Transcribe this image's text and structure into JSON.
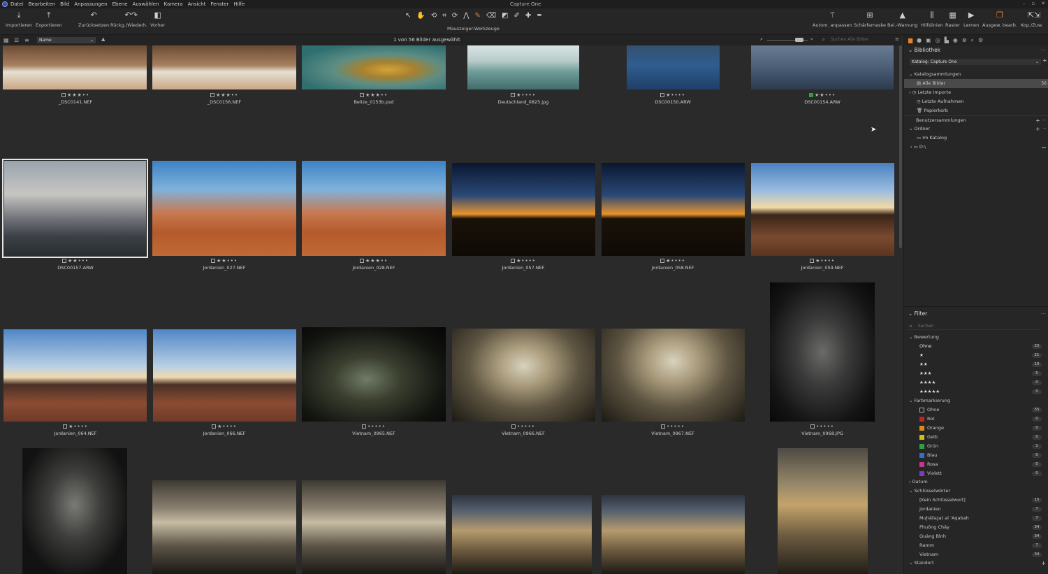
{
  "app": {
    "title": "Capture One"
  },
  "menu": [
    "Datei",
    "Bearbeiten",
    "Bild",
    "Anpassungen",
    "Ebene",
    "Auswählen",
    "Kamera",
    "Ansicht",
    "Fenster",
    "Hilfe"
  ],
  "toolbar": {
    "left": [
      {
        "label": "Importieren",
        "icon": "download-icon"
      },
      {
        "label": "Exportieren",
        "icon": "upload-icon"
      },
      {
        "label": "Zurücksetzen",
        "icon": "reset-icon"
      },
      {
        "label": "Rückg./Wiederh.",
        "icon": "undo-redo-icon"
      },
      {
        "label": "Vorher",
        "icon": "before-after-icon"
      }
    ],
    "cursor_tools_label": "Mauszeiger-Werkzeuge",
    "right": [
      {
        "label": "Autom. anpassen",
        "icon": "magic-wand-icon"
      },
      {
        "label": "Schärfemaske",
        "icon": "focus-mask-icon"
      },
      {
        "label": "Bel.-Warnung",
        "icon": "warning-icon"
      },
      {
        "label": "Hilfslinien",
        "icon": "guides-icon"
      },
      {
        "label": "Raster",
        "icon": "grid-icon"
      },
      {
        "label": "Lernen",
        "icon": "play-icon"
      },
      {
        "label": "Ausgew. bearb.",
        "icon": "edit-selected-icon"
      },
      {
        "label": "Kop./Zuw.",
        "icon": "copy-apply-icon"
      }
    ]
  },
  "browser": {
    "sort_value": "Name",
    "count_text": "1 von 56 Bilder ausgewählt",
    "search_placeholder": "Suchen Alle Bilder"
  },
  "images": [
    {
      "name": "_DSC0141.NEF",
      "rating": 3,
      "tag": "none"
    },
    {
      "name": "_DSC0156.NEF",
      "rating": 3,
      "tag": "none"
    },
    {
      "name": "Belize_0153b.psd",
      "rating": 3,
      "tag": "none"
    },
    {
      "name": "Deutschland_0825.jpg",
      "rating": 1,
      "tag": "none"
    },
    {
      "name": "DSC00150.ARW",
      "rating": 1,
      "tag": "none"
    },
    {
      "name": "DSC00154.ARW",
      "rating": 2,
      "tag": "green"
    },
    {
      "name": "DSC00157.ARW",
      "rating": 2,
      "tag": "none"
    },
    {
      "name": "Jordanien_027.NEF",
      "rating": 2,
      "tag": "none"
    },
    {
      "name": "Jordanien_028.NEF",
      "rating": 3,
      "tag": "none"
    },
    {
      "name": "Jordanien_057.NEF",
      "rating": 1,
      "tag": "none"
    },
    {
      "name": "Jordanien_058.NEF",
      "rating": 1,
      "tag": "none"
    },
    {
      "name": "Jordanien_059.NEF",
      "rating": 1,
      "tag": "none"
    },
    {
      "name": "Jordanien_064.NEF",
      "rating": 1,
      "tag": "none"
    },
    {
      "name": "Jordanien_066.NEF",
      "rating": 1,
      "tag": "none"
    },
    {
      "name": "Vietnam_0965.NEF",
      "rating": 0,
      "tag": "none"
    },
    {
      "name": "Vietnam_0966.NEF",
      "rating": 0,
      "tag": "none"
    },
    {
      "name": "Vietnam_0967.NEF",
      "rating": 0,
      "tag": "none"
    },
    {
      "name": "Vietnam_0968.JPG",
      "rating": 0,
      "tag": "none"
    }
  ],
  "library": {
    "title": "Bibliothek",
    "catalog": "Katalog: Capture One",
    "collections_title": "Katalogsammlungen",
    "collections": [
      {
        "label": "Alle Bilder",
        "count": "56"
      },
      {
        "label": "Letzte Importe",
        "count": ""
      },
      {
        "label": "Letzte Aufnahmen",
        "count": ""
      },
      {
        "label": "Papierkorb",
        "count": ""
      }
    ],
    "user_collections": "Benutzersammlungen",
    "folders_title": "Ordner",
    "folders": [
      "Im Katalog",
      "D:\\"
    ]
  },
  "filter": {
    "title": "Filter",
    "search_placeholder": "Suchen",
    "rating_title": "Bewertung",
    "ratings": [
      {
        "label": "Ohne",
        "count": "20"
      },
      {
        "label": "★",
        "count": "21"
      },
      {
        "label": "★★",
        "count": "10"
      },
      {
        "label": "★★★",
        "count": "5"
      },
      {
        "label": "★★★★",
        "count": "0"
      },
      {
        "label": "★★★★★",
        "count": "0"
      }
    ],
    "color_title": "Farbmarkierung",
    "colors": [
      {
        "label": "Ohne",
        "count": "55",
        "color": "none"
      },
      {
        "label": "Rot",
        "count": "0",
        "color": "#c02424"
      },
      {
        "label": "Orange",
        "count": "0",
        "color": "#d98a1c"
      },
      {
        "label": "Gelb",
        "count": "0",
        "color": "#c9c21d"
      },
      {
        "label": "Grün",
        "count": "1",
        "color": "#2ea043"
      },
      {
        "label": "Blau",
        "count": "0",
        "color": "#2f6fd0"
      },
      {
        "label": "Rosa",
        "count": "0",
        "color": "#c0398a"
      },
      {
        "label": "Violett",
        "count": "0",
        "color": "#7a3cc0"
      }
    ],
    "date_title": "Datum",
    "keywords_title": "Schlüsselwörter",
    "keywords": [
      {
        "label": "[Kein Schlüsselwort]",
        "count": "15"
      },
      {
        "label": "Jordanien",
        "count": "7"
      },
      {
        "label": "Muḩāfaz̧at al ʻAqabah",
        "count": "7"
      },
      {
        "label": "Phuōng Chāy",
        "count": "34"
      },
      {
        "label": "Quảng Bình",
        "count": "34"
      },
      {
        "label": "Ramm",
        "count": "7"
      },
      {
        "label": "Vietnam",
        "count": "34"
      }
    ],
    "location_title": "Standort"
  }
}
